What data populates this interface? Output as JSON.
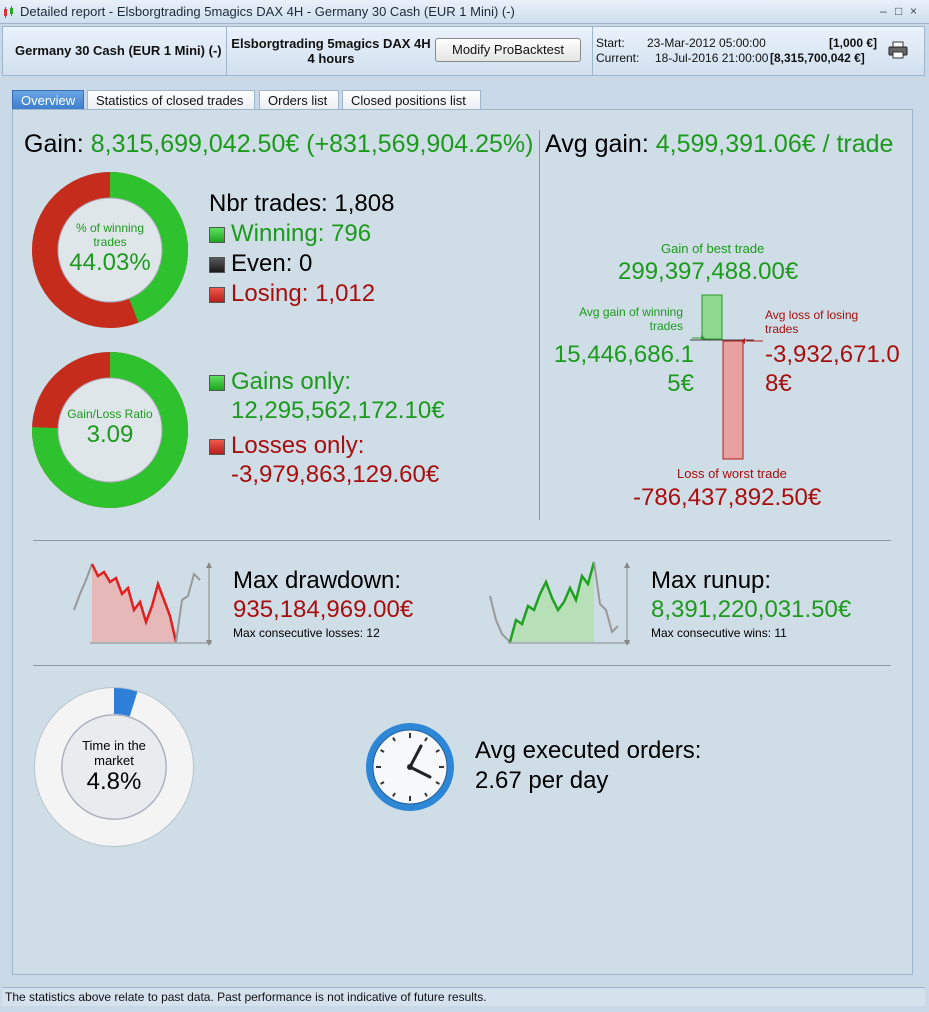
{
  "window": {
    "title": "Detailed report - Elsborgtrading 5magics DAX 4H - Germany 30 Cash (EUR 1 Mini) (-)"
  },
  "header": {
    "instrument": "Germany 30 Cash (EUR 1 Mini) (-)",
    "system_name": "Elsborgtrading 5magics DAX 4H",
    "timeframe": "4 hours",
    "modify_button": "Modify ProBacktest",
    "start_label": "Start:",
    "start_date": "23-Mar-2012 05:00:00",
    "start_value": "[1,000 €]",
    "current_label": "Current:",
    "current_date": "18-Jul-2016 21:00:00",
    "current_value": "[8,315,700,042 €]"
  },
  "tabs": [
    "Overview",
    "Statistics of closed trades",
    "Orders list",
    "Closed positions list"
  ],
  "overview": {
    "gain_label": "Gain:",
    "gain_value": "8,315,699,042.50€ (+831,569,904.25%)",
    "avg_gain_label": "Avg gain:",
    "avg_gain_value": "4,599,391.06€ / trade",
    "winning_ring": {
      "label": "% of winning trades",
      "value": "44.03%",
      "fraction": 0.4403
    },
    "nbr_trades_label": "Nbr trades:",
    "nbr_trades_value": "1,808",
    "winning_label": "Winning:",
    "winning_value": "796",
    "even_label": "Even:",
    "even_value": "0",
    "losing_label": "Losing:",
    "losing_value": "1,012",
    "ratio_ring": {
      "label": "Gain/Loss Ratio",
      "value": "3.09",
      "fraction": 0.7555
    },
    "gains_only_label": "Gains only:",
    "gains_only_value": "12,295,562,172.10€",
    "losses_only_label": "Losses only:",
    "losses_only_value": "-3,979,863,129.60€",
    "best_trade_label": "Gain of best trade",
    "best_trade_value": "299,397,488.00€",
    "avg_win_label": "Avg gain of winning trades",
    "avg_win_value": "15,446,686.15€",
    "avg_loss_label": "Avg loss of losing trades",
    "avg_loss_value": "-3,932,671.08€",
    "worst_trade_label": "Loss of worst trade",
    "worst_trade_value": "-786,437,892.50€",
    "max_drawdown_label": "Max drawdown:",
    "max_drawdown_value": "935,184,969.00€",
    "max_consec_losses": "Max consecutive losses: 12",
    "max_runup_label": "Max runup:",
    "max_runup_value": "8,391,220,031.50€",
    "max_consec_wins": "Max consecutive wins: 11",
    "time_ring": {
      "label": "Time in the market",
      "value": "4.8%",
      "fraction": 0.048
    },
    "avg_orders_label": "Avg executed orders:",
    "avg_orders_value": "2.67 per day"
  },
  "footer": {
    "text": "The statistics above relate to past data. Past performance is not indicative of future results."
  },
  "colors": {
    "gain": "#1b9a1b",
    "loss": "#a80e0e",
    "tab_active": "#3a7ccc",
    "time_ring": "#2f7fd8"
  }
}
